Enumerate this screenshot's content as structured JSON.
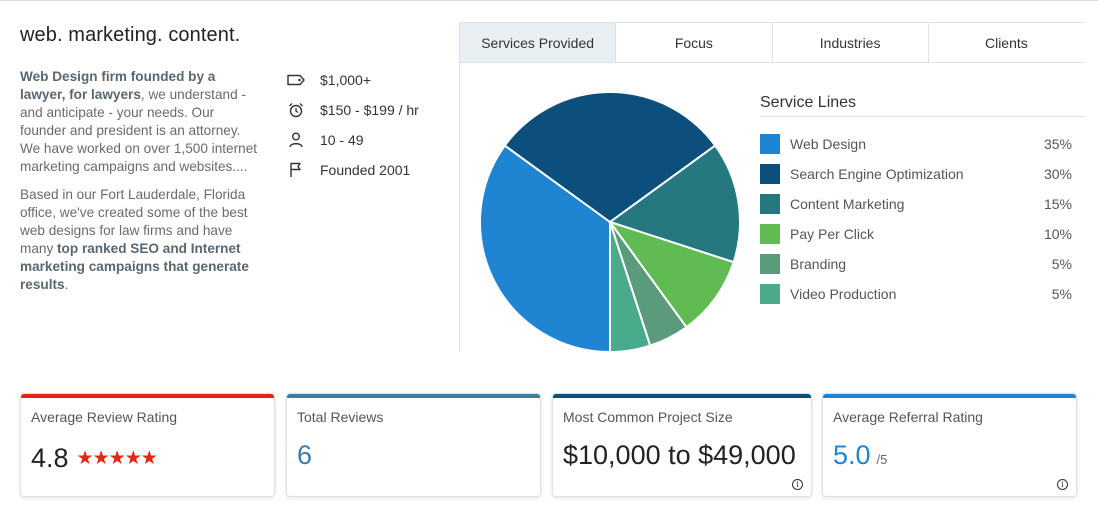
{
  "profile": {
    "tagline": "web. marketing. content.",
    "desc_p1_bold": "Web Design firm founded by a lawyer, for lawyers",
    "desc_p1_rest": ", we understand - and anticipate - your needs. Our founder and president is an attorney. We have worked on over 1,500 internet marketing campaigns and websites....",
    "desc_p2_start": "Based in our Fort Lauderdale, Florida office, we've created some of the best web designs for law firms and have many ",
    "desc_p2_bold": "top ranked SEO and Internet marketing campaigns that generate results",
    "desc_p2_end": "."
  },
  "facts": [
    {
      "icon": "price-tag-icon",
      "text": "$1,000+"
    },
    {
      "icon": "alarm-clock-icon",
      "text": "$150 - $199 / hr"
    },
    {
      "icon": "person-icon",
      "text": "10 - 49"
    },
    {
      "icon": "flag-icon",
      "text": "Founded 2001"
    }
  ],
  "tabs": [
    "Services Provided",
    "Focus",
    "Industries",
    "Clients"
  ],
  "active_tab": "Services Provided",
  "legend_title": "Service Lines",
  "chart_data": {
    "type": "pie",
    "title": "Service Lines",
    "categories": [
      "Web Design",
      "Search Engine Optimization",
      "Content Marketing",
      "Pay Per Click",
      "Branding",
      "Video Production"
    ],
    "values": [
      35,
      30,
      15,
      10,
      5,
      5
    ],
    "labels": [
      "35%",
      "30%",
      "15%",
      "10%",
      "5%",
      "5%"
    ],
    "colors": [
      "#1f84d1",
      "#0c4f7c",
      "#25787f",
      "#60bb53",
      "#5c9a7c",
      "#4aab8c"
    ]
  },
  "cards": [
    {
      "label": "Average Review Rating",
      "value": "4.8",
      "stars": 5,
      "bar_color": "#e62415"
    },
    {
      "label": "Total Reviews",
      "value": "6",
      "bar_color": "#3d7e9a",
      "value_color": "#3a7ca5"
    },
    {
      "label": "Most Common Project Size",
      "value": "$10,000 to $49,000",
      "bar_color": "#0c4f7c",
      "info": "i"
    },
    {
      "label": "Average Referral Rating",
      "value": "5.0",
      "out_of": "/5",
      "bar_color": "#1f84d1",
      "value_color": "#1f84d1",
      "info": "i"
    }
  ]
}
